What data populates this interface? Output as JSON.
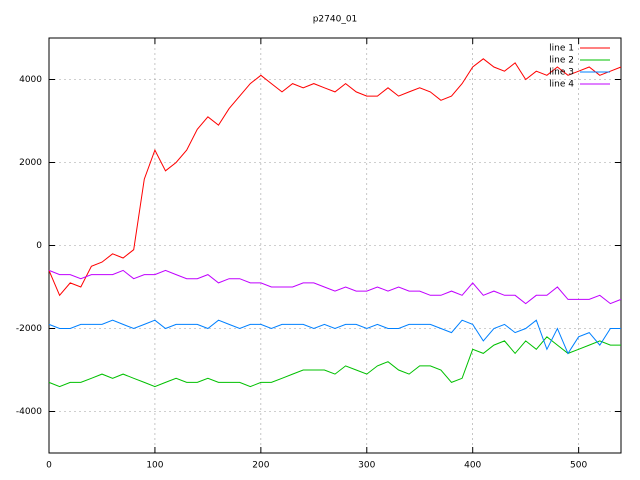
{
  "chart_data": {
    "type": "line",
    "title": "p2740_01",
    "x": [
      0,
      10,
      20,
      30,
      40,
      50,
      60,
      70,
      80,
      90,
      100,
      110,
      120,
      130,
      140,
      150,
      160,
      170,
      180,
      190,
      200,
      210,
      220,
      230,
      240,
      250,
      260,
      270,
      280,
      290,
      300,
      310,
      320,
      330,
      340,
      350,
      360,
      370,
      380,
      390,
      400,
      410,
      420,
      430,
      440,
      450,
      460,
      470,
      480,
      490,
      500,
      510,
      520,
      530,
      540
    ],
    "series": [
      {
        "name": "line 1",
        "color": "#ff0000",
        "values": [
          -600,
          -1200,
          -900,
          -1000,
          -500,
          -400,
          -200,
          -300,
          -100,
          1600,
          2300,
          1800,
          2000,
          2300,
          2800,
          3100,
          2900,
          3300,
          3600,
          3900,
          4100,
          3900,
          3700,
          3900,
          3800,
          3900,
          3800,
          3700,
          3900,
          3700,
          3600,
          3600,
          3800,
          3600,
          3700,
          3800,
          3700,
          3500,
          3600,
          3900,
          4300,
          4500,
          4300,
          4200,
          4400,
          4000,
          4200,
          4100,
          4300,
          4100,
          4200,
          4300,
          4100,
          4200,
          4300
        ]
      },
      {
        "name": "line 2",
        "color": "#00c000",
        "values": [
          -3300,
          -3400,
          -3300,
          -3300,
          -3200,
          -3100,
          -3200,
          -3100,
          -3200,
          -3300,
          -3400,
          -3300,
          -3200,
          -3300,
          -3300,
          -3200,
          -3300,
          -3300,
          -3300,
          -3400,
          -3300,
          -3300,
          -3200,
          -3100,
          -3000,
          -3000,
          -3000,
          -3100,
          -2900,
          -3000,
          -3100,
          -2900,
          -2800,
          -3000,
          -3100,
          -2900,
          -2900,
          -3000,
          -3300,
          -3200,
          -2500,
          -2600,
          -2400,
          -2300,
          -2600,
          -2300,
          -2500,
          -2200,
          -2400,
          -2600,
          -2500,
          -2400,
          -2300,
          -2400,
          -2400
        ]
      },
      {
        "name": "line 3",
        "color": "#0080ff",
        "values": [
          -1900,
          -2000,
          -2000,
          -1900,
          -1900,
          -1900,
          -1800,
          -1900,
          -2000,
          -1900,
          -1800,
          -2000,
          -1900,
          -1900,
          -1900,
          -2000,
          -1800,
          -1900,
          -2000,
          -1900,
          -1900,
          -2000,
          -1900,
          -1900,
          -1900,
          -2000,
          -1900,
          -2000,
          -1900,
          -1900,
          -2000,
          -1900,
          -2000,
          -2000,
          -1900,
          -1900,
          -1900,
          -2000,
          -2100,
          -1800,
          -1900,
          -2300,
          -2000,
          -1900,
          -2100,
          -2000,
          -1800,
          -2500,
          -2000,
          -2600,
          -2200,
          -2100,
          -2400,
          -2000,
          -2000
        ]
      },
      {
        "name": "line 4",
        "color": "#c000ff",
        "values": [
          -600,
          -700,
          -700,
          -800,
          -700,
          -700,
          -700,
          -600,
          -800,
          -700,
          -700,
          -600,
          -700,
          -800,
          -800,
          -700,
          -900,
          -800,
          -800,
          -900,
          -900,
          -1000,
          -1000,
          -1000,
          -900,
          -900,
          -1000,
          -1100,
          -1000,
          -1100,
          -1100,
          -1000,
          -1100,
          -1000,
          -1100,
          -1100,
          -1200,
          -1200,
          -1100,
          -1200,
          -900,
          -1200,
          -1100,
          -1200,
          -1200,
          -1400,
          -1200,
          -1200,
          -1000,
          -1300,
          -1300,
          -1300,
          -1200,
          -1400,
          -1300
        ]
      }
    ],
    "xlim": [
      0,
      540
    ],
    "xticks": [
      0,
      100,
      200,
      300,
      400,
      500
    ],
    "ylim": [
      -5000,
      5000
    ],
    "yticks": [
      -4000,
      -2000,
      0,
      2000,
      4000
    ],
    "grid": true,
    "legend": "top-right"
  }
}
